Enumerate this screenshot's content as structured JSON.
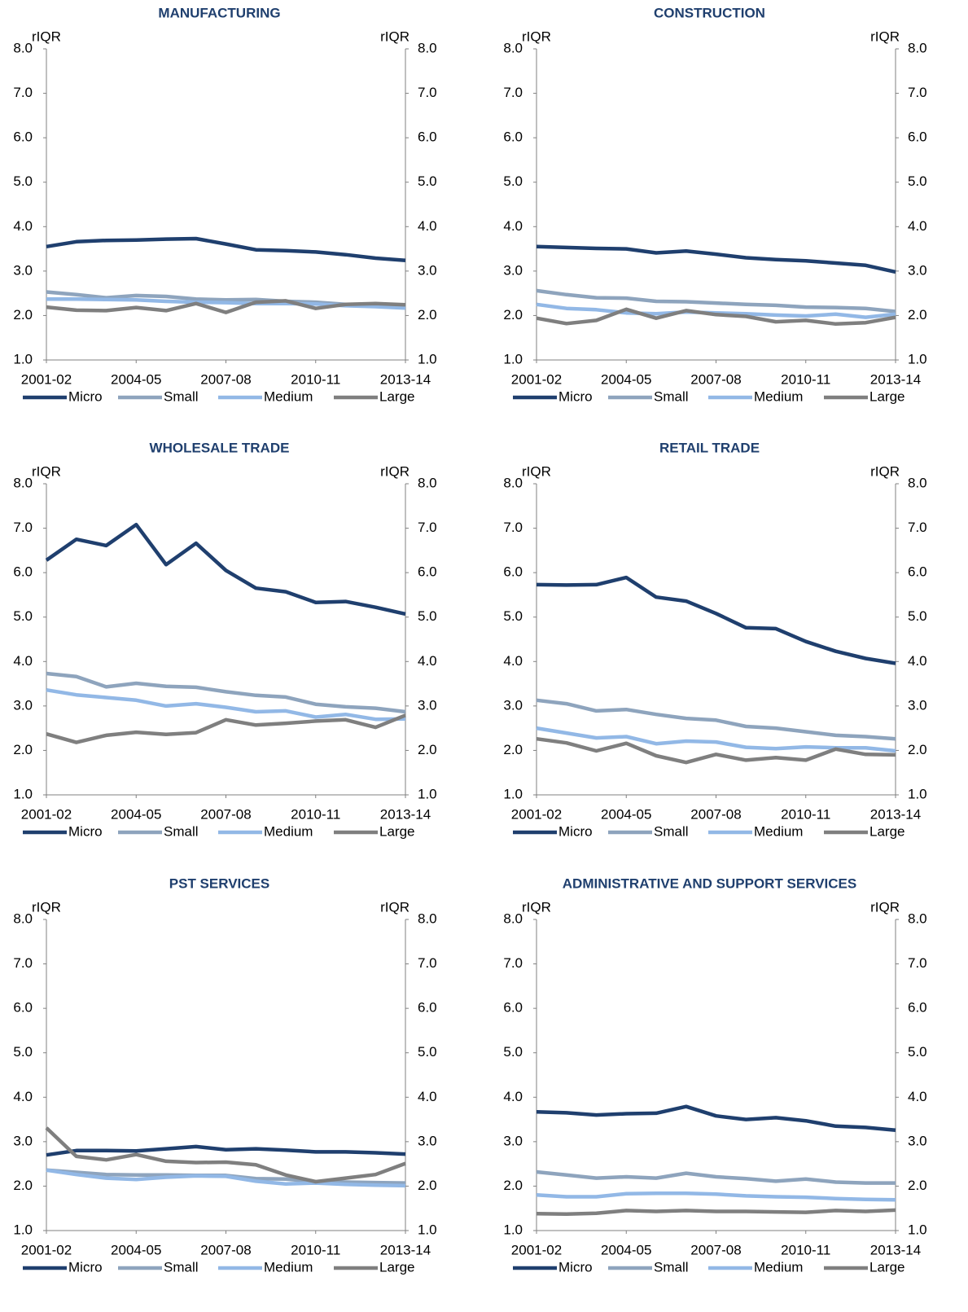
{
  "chart_data": [
    {
      "type": "line",
      "title": "MANUFACTURING",
      "ylabel": "rIQR",
      "y2label": "rIQR",
      "categories": [
        "2001-02",
        null,
        null,
        "2004-05",
        null,
        null,
        "2007-08",
        null,
        null,
        "2010-11",
        null,
        null,
        "2013-14"
      ],
      "ylim": [
        1,
        8
      ],
      "yticks": [
        {
          "value": 1,
          "label": "1.0"
        },
        {
          "value": 2,
          "label": "2.0"
        },
        {
          "value": 3,
          "label": "3.0"
        },
        {
          "value": 4,
          "label": "4.0"
        },
        {
          "value": 5,
          "label": "5.0"
        },
        {
          "value": 6,
          "label": "6.0"
        },
        {
          "value": 7,
          "label": "7.0"
        },
        {
          "value": 8,
          "label": "8.0"
        }
      ],
      "y2lim": [
        1,
        8
      ],
      "y2ticks": [
        {
          "value": 1,
          "label": "1.0"
        },
        {
          "value": 2,
          "label": "2.0"
        },
        {
          "value": 3,
          "label": "3.0"
        },
        {
          "value": 4,
          "label": "4.0"
        },
        {
          "value": 5,
          "label": "5.0"
        },
        {
          "value": 6,
          "label": "6.0"
        },
        {
          "value": 7,
          "label": "7.0"
        },
        {
          "value": 8,
          "label": "8.0"
        }
      ],
      "legend": "bottom",
      "series": [
        {
          "name": "Micro",
          "color": "#1f3f6e",
          "values": [
            3.55,
            3.66,
            3.69,
            3.7,
            3.72,
            3.73,
            3.61,
            3.48,
            3.46,
            3.43,
            3.37,
            3.29,
            3.24
          ]
        },
        {
          "name": "Small",
          "color": "#8ea4bd",
          "values": [
            2.53,
            2.47,
            2.4,
            2.45,
            2.43,
            2.37,
            2.35,
            2.36,
            2.32,
            2.3,
            2.25,
            2.23,
            2.22
          ]
        },
        {
          "name": "Medium",
          "color": "#92b8e6",
          "values": [
            2.37,
            2.37,
            2.36,
            2.35,
            2.32,
            2.3,
            2.29,
            2.27,
            2.27,
            2.26,
            2.22,
            2.2,
            2.17
          ]
        },
        {
          "name": "Large",
          "color": "#7f7f7f",
          "values": [
            2.19,
            2.12,
            2.11,
            2.18,
            2.11,
            2.27,
            2.07,
            2.3,
            2.33,
            2.16,
            2.25,
            2.27,
            2.24
          ]
        }
      ]
    },
    {
      "type": "line",
      "title": "CONSTRUCTION",
      "ylabel": "rIQR",
      "y2label": "rIQR",
      "categories": [
        "2001-02",
        null,
        null,
        "2004-05",
        null,
        null,
        "2007-08",
        null,
        null,
        "2010-11",
        null,
        null,
        "2013-14"
      ],
      "ylim": [
        1,
        8
      ],
      "yticks": [
        {
          "value": 1,
          "label": "1.0"
        },
        {
          "value": 2,
          "label": "2.0"
        },
        {
          "value": 3,
          "label": "3.0"
        },
        {
          "value": 4,
          "label": "4.0"
        },
        {
          "value": 5,
          "label": "5.0"
        },
        {
          "value": 6,
          "label": "6.0"
        },
        {
          "value": 7,
          "label": "7.0"
        },
        {
          "value": 8,
          "label": "8.0"
        }
      ],
      "y2lim": [
        1,
        8
      ],
      "y2ticks": [
        {
          "value": 1,
          "label": "1.0"
        },
        {
          "value": 2,
          "label": "2.0"
        },
        {
          "value": 3,
          "label": "3.0"
        },
        {
          "value": 4,
          "label": "4.0"
        },
        {
          "value": 5,
          "label": "5.0"
        },
        {
          "value": 6,
          "label": "6.0"
        },
        {
          "value": 7,
          "label": "7.0"
        },
        {
          "value": 8,
          "label": "8.0"
        }
      ],
      "legend": "bottom",
      "series": [
        {
          "name": "Micro",
          "color": "#1f3f6e",
          "values": [
            3.55,
            3.53,
            3.51,
            3.5,
            3.41,
            3.45,
            3.38,
            3.3,
            3.26,
            3.23,
            3.18,
            3.13,
            2.98
          ]
        },
        {
          "name": "Small",
          "color": "#8ea4bd",
          "values": [
            2.56,
            2.47,
            2.4,
            2.39,
            2.32,
            2.31,
            2.28,
            2.25,
            2.23,
            2.19,
            2.18,
            2.16,
            2.09
          ]
        },
        {
          "name": "Medium",
          "color": "#92b8e6",
          "values": [
            2.25,
            2.16,
            2.13,
            2.06,
            2.04,
            2.08,
            2.06,
            2.04,
            2.01,
            1.99,
            2.03,
            1.96,
            2.03
          ]
        },
        {
          "name": "Large",
          "color": "#7f7f7f",
          "values": [
            1.94,
            1.82,
            1.89,
            2.14,
            1.94,
            2.11,
            2.02,
            1.98,
            1.86,
            1.89,
            1.81,
            1.84,
            1.96
          ]
        }
      ]
    },
    {
      "type": "line",
      "title": "WHOLESALE TRADE",
      "ylabel": "rIQR",
      "y2label": "rIQR",
      "categories": [
        "2001-02",
        null,
        null,
        "2004-05",
        null,
        null,
        "2007-08",
        null,
        null,
        "2010-11",
        null,
        null,
        "2013-14"
      ],
      "ylim": [
        1,
        8
      ],
      "yticks": [
        {
          "value": 1,
          "label": "1.0"
        },
        {
          "value": 2,
          "label": "2.0"
        },
        {
          "value": 3,
          "label": "3.0"
        },
        {
          "value": 4,
          "label": "4.0"
        },
        {
          "value": 5,
          "label": "5.0"
        },
        {
          "value": 6,
          "label": "6.0"
        },
        {
          "value": 7,
          "label": "7.0"
        },
        {
          "value": 8,
          "label": "8.0"
        }
      ],
      "y2lim": [
        1,
        8
      ],
      "y2ticks": [
        {
          "value": 1,
          "label": "1.0"
        },
        {
          "value": 2,
          "label": "2.0"
        },
        {
          "value": 3,
          "label": "3.0"
        },
        {
          "value": 4,
          "label": "4.0"
        },
        {
          "value": 5,
          "label": "5.0"
        },
        {
          "value": 6,
          "label": "6.0"
        },
        {
          "value": 7,
          "label": "7.0"
        },
        {
          "value": 8,
          "label": "8.0"
        }
      ],
      "legend": "bottom",
      "series": [
        {
          "name": "Micro",
          "color": "#1f3f6e",
          "values": [
            6.28,
            6.75,
            6.61,
            7.08,
            6.18,
            6.66,
            6.05,
            5.65,
            5.57,
            5.33,
            5.35,
            5.22,
            5.07
          ]
        },
        {
          "name": "Small",
          "color": "#8ea4bd",
          "values": [
            3.73,
            3.66,
            3.43,
            3.51,
            3.44,
            3.42,
            3.32,
            3.24,
            3.2,
            3.04,
            2.98,
            2.95,
            2.87
          ]
        },
        {
          "name": "Medium",
          "color": "#92b8e6",
          "values": [
            3.36,
            3.25,
            3.19,
            3.13,
            3.0,
            3.05,
            2.97,
            2.87,
            2.89,
            2.75,
            2.81,
            2.7,
            2.71
          ]
        },
        {
          "name": "Large",
          "color": "#7f7f7f",
          "values": [
            2.37,
            2.18,
            2.34,
            2.41,
            2.36,
            2.4,
            2.69,
            2.57,
            2.61,
            2.66,
            2.69,
            2.52,
            2.79
          ]
        }
      ]
    },
    {
      "type": "line",
      "title": "RETAIL TRADE",
      "ylabel": "rIQR",
      "y2label": "rIQR",
      "categories": [
        "2001-02",
        null,
        null,
        "2004-05",
        null,
        null,
        "2007-08",
        null,
        null,
        "2010-11",
        null,
        null,
        "2013-14"
      ],
      "ylim": [
        1,
        8
      ],
      "yticks": [
        {
          "value": 1,
          "label": "1.0"
        },
        {
          "value": 2,
          "label": "2.0"
        },
        {
          "value": 3,
          "label": "3.0"
        },
        {
          "value": 4,
          "label": "4.0"
        },
        {
          "value": 5,
          "label": "5.0"
        },
        {
          "value": 6,
          "label": "6.0"
        },
        {
          "value": 7,
          "label": "7.0"
        },
        {
          "value": 8,
          "label": "8.0"
        }
      ],
      "y2lim": [
        1,
        8
      ],
      "y2ticks": [
        {
          "value": 1,
          "label": "1.0"
        },
        {
          "value": 2,
          "label": "2.0"
        },
        {
          "value": 3,
          "label": "3.0"
        },
        {
          "value": 4,
          "label": "4.0"
        },
        {
          "value": 5,
          "label": "5.0"
        },
        {
          "value": 6,
          "label": "6.0"
        },
        {
          "value": 7,
          "label": "7.0"
        },
        {
          "value": 8,
          "label": "8.0"
        }
      ],
      "legend": "bottom",
      "series": [
        {
          "name": "Micro",
          "color": "#1f3f6e",
          "values": [
            5.73,
            5.72,
            5.73,
            5.89,
            5.45,
            5.36,
            5.08,
            4.76,
            4.74,
            4.45,
            4.23,
            4.07,
            3.96
          ]
        },
        {
          "name": "Small",
          "color": "#8ea4bd",
          "values": [
            3.13,
            3.05,
            2.89,
            2.92,
            2.81,
            2.72,
            2.68,
            2.54,
            2.5,
            2.42,
            2.34,
            2.31,
            2.26
          ]
        },
        {
          "name": "Medium",
          "color": "#92b8e6",
          "values": [
            2.5,
            2.39,
            2.28,
            2.31,
            2.15,
            2.21,
            2.19,
            2.07,
            2.04,
            2.08,
            2.06,
            2.06,
            1.99
          ]
        },
        {
          "name": "Large",
          "color": "#7f7f7f",
          "values": [
            2.26,
            2.17,
            1.99,
            2.16,
            1.88,
            1.73,
            1.91,
            1.78,
            1.84,
            1.78,
            2.03,
            1.91,
            1.9
          ]
        }
      ]
    },
    {
      "type": "line",
      "title": "PST SERVICES",
      "ylabel": "rIQR",
      "y2label": "rIQR",
      "categories": [
        "2001-02",
        null,
        null,
        "2004-05",
        null,
        null,
        "2007-08",
        null,
        null,
        "2010-11",
        null,
        null,
        "2013-14"
      ],
      "ylim": [
        1,
        8
      ],
      "yticks": [
        {
          "value": 1,
          "label": "1.0"
        },
        {
          "value": 2,
          "label": "2.0"
        },
        {
          "value": 3,
          "label": "3.0"
        },
        {
          "value": 4,
          "label": "4.0"
        },
        {
          "value": 5,
          "label": "5.0"
        },
        {
          "value": 6,
          "label": "6.0"
        },
        {
          "value": 7,
          "label": "7.0"
        },
        {
          "value": 8,
          "label": "8.0"
        }
      ],
      "y2lim": [
        1,
        8
      ],
      "y2ticks": [
        {
          "value": 1,
          "label": "1.0"
        },
        {
          "value": 2,
          "label": "2.0"
        },
        {
          "value": 3,
          "label": "3.0"
        },
        {
          "value": 4,
          "label": "4.0"
        },
        {
          "value": 5,
          "label": "5.0"
        },
        {
          "value": 6,
          "label": "6.0"
        },
        {
          "value": 7,
          "label": "7.0"
        },
        {
          "value": 8,
          "label": "8.0"
        }
      ],
      "legend": "bottom",
      "series": [
        {
          "name": "Micro",
          "color": "#1f3f6e",
          "values": [
            2.7,
            2.8,
            2.8,
            2.79,
            2.84,
            2.89,
            2.82,
            2.84,
            2.81,
            2.77,
            2.77,
            2.75,
            2.72
          ]
        },
        {
          "name": "Small",
          "color": "#8ea4bd",
          "values": [
            2.36,
            2.31,
            2.26,
            2.25,
            2.25,
            2.24,
            2.24,
            2.17,
            2.16,
            2.1,
            2.09,
            2.08,
            2.07
          ]
        },
        {
          "name": "Medium",
          "color": "#92b8e6",
          "values": [
            2.36,
            2.26,
            2.18,
            2.15,
            2.2,
            2.23,
            2.22,
            2.11,
            2.05,
            2.07,
            2.04,
            2.02,
            2.01
          ]
        },
        {
          "name": "Large",
          "color": "#7f7f7f",
          "values": [
            3.31,
            2.67,
            2.59,
            2.71,
            2.56,
            2.53,
            2.54,
            2.48,
            2.25,
            2.1,
            2.18,
            2.26,
            2.51
          ]
        }
      ]
    },
    {
      "type": "line",
      "title": "ADMINISTRATIVE AND SUPPORT SERVICES",
      "ylabel": "rIQR",
      "y2label": "rIQR",
      "categories": [
        "2001-02",
        null,
        null,
        "2004-05",
        null,
        null,
        "2007-08",
        null,
        null,
        "2010-11",
        null,
        null,
        "2013-14"
      ],
      "ylim": [
        1,
        8
      ],
      "yticks": [
        {
          "value": 1,
          "label": "1.0"
        },
        {
          "value": 2,
          "label": "2.0"
        },
        {
          "value": 3,
          "label": "3.0"
        },
        {
          "value": 4,
          "label": "4.0"
        },
        {
          "value": 5,
          "label": "5.0"
        },
        {
          "value": 6,
          "label": "6.0"
        },
        {
          "value": 7,
          "label": "7.0"
        },
        {
          "value": 8,
          "label": "8.0"
        }
      ],
      "y2lim": [
        1,
        8
      ],
      "y2ticks": [
        {
          "value": 1,
          "label": "1.0"
        },
        {
          "value": 2,
          "label": "2.0"
        },
        {
          "value": 3,
          "label": "3.0"
        },
        {
          "value": 4,
          "label": "4.0"
        },
        {
          "value": 5,
          "label": "5.0"
        },
        {
          "value": 6,
          "label": "6.0"
        },
        {
          "value": 7,
          "label": "7.0"
        },
        {
          "value": 8,
          "label": "8.0"
        }
      ],
      "legend": "bottom",
      "series": [
        {
          "name": "Micro",
          "color": "#1f3f6e",
          "values": [
            3.67,
            3.65,
            3.6,
            3.63,
            3.64,
            3.79,
            3.58,
            3.5,
            3.54,
            3.47,
            3.35,
            3.32,
            3.26
          ]
        },
        {
          "name": "Small",
          "color": "#8ea4bd",
          "values": [
            2.32,
            2.25,
            2.18,
            2.21,
            2.18,
            2.29,
            2.21,
            2.17,
            2.11,
            2.16,
            2.09,
            2.07,
            2.07
          ]
        },
        {
          "name": "Medium",
          "color": "#92b8e6",
          "values": [
            1.8,
            1.76,
            1.76,
            1.83,
            1.84,
            1.84,
            1.82,
            1.78,
            1.76,
            1.75,
            1.72,
            1.7,
            1.69
          ]
        },
        {
          "name": "Large",
          "color": "#7f7f7f",
          "values": [
            1.38,
            1.37,
            1.39,
            1.45,
            1.43,
            1.45,
            1.43,
            1.43,
            1.42,
            1.41,
            1.45,
            1.43,
            1.46
          ]
        }
      ]
    }
  ]
}
